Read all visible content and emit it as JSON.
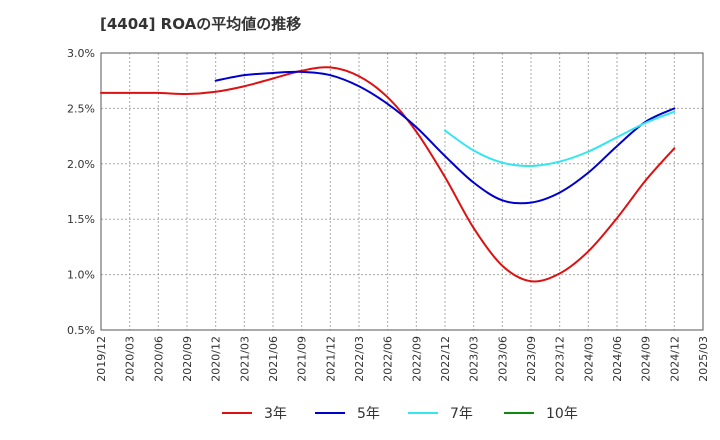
{
  "chart_data": {
    "type": "line",
    "title": "[4404]  ROAの平均値の推移",
    "xlabel": "",
    "ylabel": "",
    "ylim": [
      0.5,
      3.0
    ],
    "yticks": [
      "0.5%",
      "1.0%",
      "1.5%",
      "2.0%",
      "2.5%",
      "3.0%"
    ],
    "x": [
      "2019/12",
      "2020/03",
      "2020/06",
      "2020/09",
      "2020/12",
      "2021/03",
      "2021/06",
      "2021/09",
      "2021/12",
      "2022/03",
      "2022/06",
      "2022/09",
      "2022/12",
      "2023/03",
      "2023/06",
      "2023/09",
      "2023/12",
      "2024/03",
      "2024/06",
      "2024/09",
      "2024/12",
      "2025/03"
    ],
    "grid": true,
    "legend_position": "bottom",
    "series": [
      {
        "name": "3年",
        "color": "#dd1111",
        "values": [
          2.64,
          2.64,
          2.64,
          2.63,
          2.65,
          2.7,
          2.77,
          2.84,
          2.87,
          2.79,
          2.6,
          2.29,
          1.88,
          1.42,
          1.08,
          0.94,
          1.01,
          1.21,
          1.51,
          1.85,
          2.14,
          null
        ]
      },
      {
        "name": "5年",
        "color": "#0000cc",
        "values": [
          null,
          null,
          null,
          null,
          2.75,
          2.8,
          2.82,
          2.83,
          2.8,
          2.7,
          2.54,
          2.33,
          2.07,
          1.83,
          1.67,
          1.65,
          1.74,
          1.92,
          2.16,
          2.38,
          2.5,
          null
        ]
      },
      {
        "name": "7年",
        "color": "#33e6f0",
        "values": [
          null,
          null,
          null,
          null,
          null,
          null,
          null,
          null,
          null,
          null,
          null,
          null,
          2.3,
          2.12,
          2.01,
          1.98,
          2.02,
          2.11,
          2.24,
          2.37,
          2.47,
          null
        ]
      },
      {
        "name": "10年",
        "color": "#118811",
        "values": [
          null,
          null,
          null,
          null,
          null,
          null,
          null,
          null,
          null,
          null,
          null,
          null,
          null,
          null,
          null,
          null,
          null,
          null,
          null,
          null,
          null,
          null
        ]
      }
    ]
  }
}
